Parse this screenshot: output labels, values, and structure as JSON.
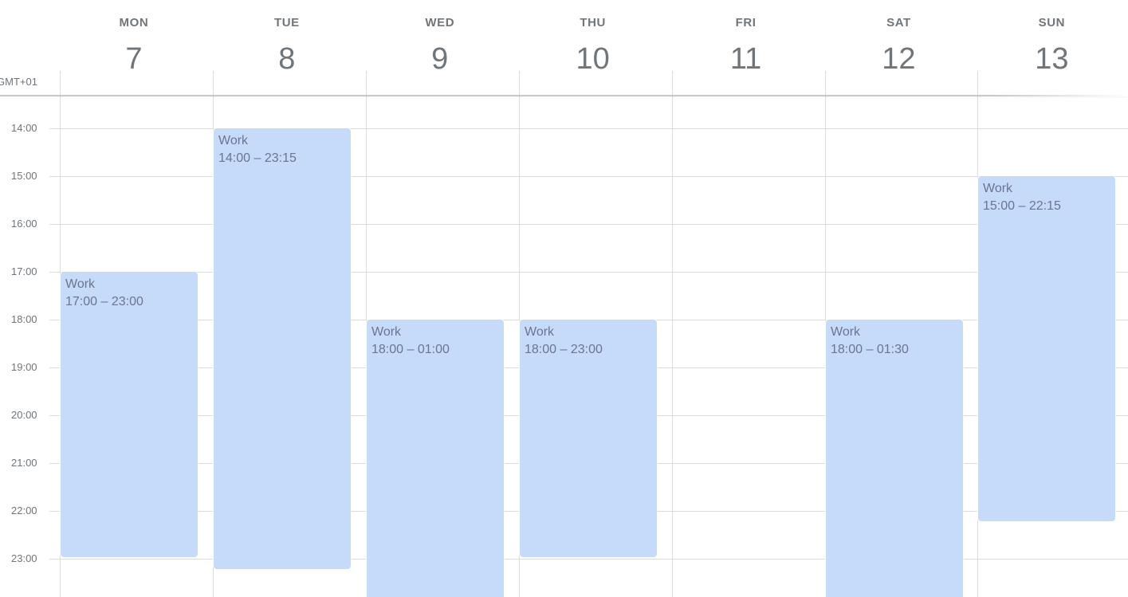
{
  "timezone_label": "GMT+01",
  "days": [
    {
      "name": "MON",
      "number": "7"
    },
    {
      "name": "TUE",
      "number": "8"
    },
    {
      "name": "WED",
      "number": "9"
    },
    {
      "name": "THU",
      "number": "10"
    },
    {
      "name": "FRI",
      "number": "11"
    },
    {
      "name": "SAT",
      "number": "12"
    },
    {
      "name": "SUN",
      "number": "13"
    }
  ],
  "hours": [
    "14:00",
    "15:00",
    "16:00",
    "17:00",
    "18:00",
    "19:00",
    "20:00",
    "21:00",
    "22:00",
    "23:00"
  ],
  "events": [
    {
      "day_index": 0,
      "title": "Work",
      "time_range": "17:00 – 23:00",
      "start_hour": 17,
      "end_hour": 23,
      "color": "#c6daf9"
    },
    {
      "day_index": 1,
      "title": "Work",
      "time_range": "14:00 – 23:15",
      "start_hour": 14,
      "end_hour": 23.25,
      "color": "#c6daf9"
    },
    {
      "day_index": 2,
      "title": "Work",
      "time_range": "18:00 – 01:00",
      "start_hour": 18,
      "end_hour": 25,
      "color": "#c6daf9"
    },
    {
      "day_index": 3,
      "title": "Work",
      "time_range": "18:00 – 23:00",
      "start_hour": 18,
      "end_hour": 23,
      "color": "#c6daf9"
    },
    {
      "day_index": 5,
      "title": "Work",
      "time_range": "18:00 – 01:30",
      "start_hour": 18,
      "end_hour": 25.5,
      "color": "#c6daf9"
    },
    {
      "day_index": 6,
      "title": "Work",
      "time_range": "15:00 – 22:15",
      "start_hour": 15,
      "end_hour": 22.25,
      "color": "#c6daf9"
    }
  ],
  "colors": {
    "event_background": "#c6daf9",
    "event_text": "#6b7590",
    "grid_line": "#dadce0",
    "header_text": "#70757a"
  }
}
